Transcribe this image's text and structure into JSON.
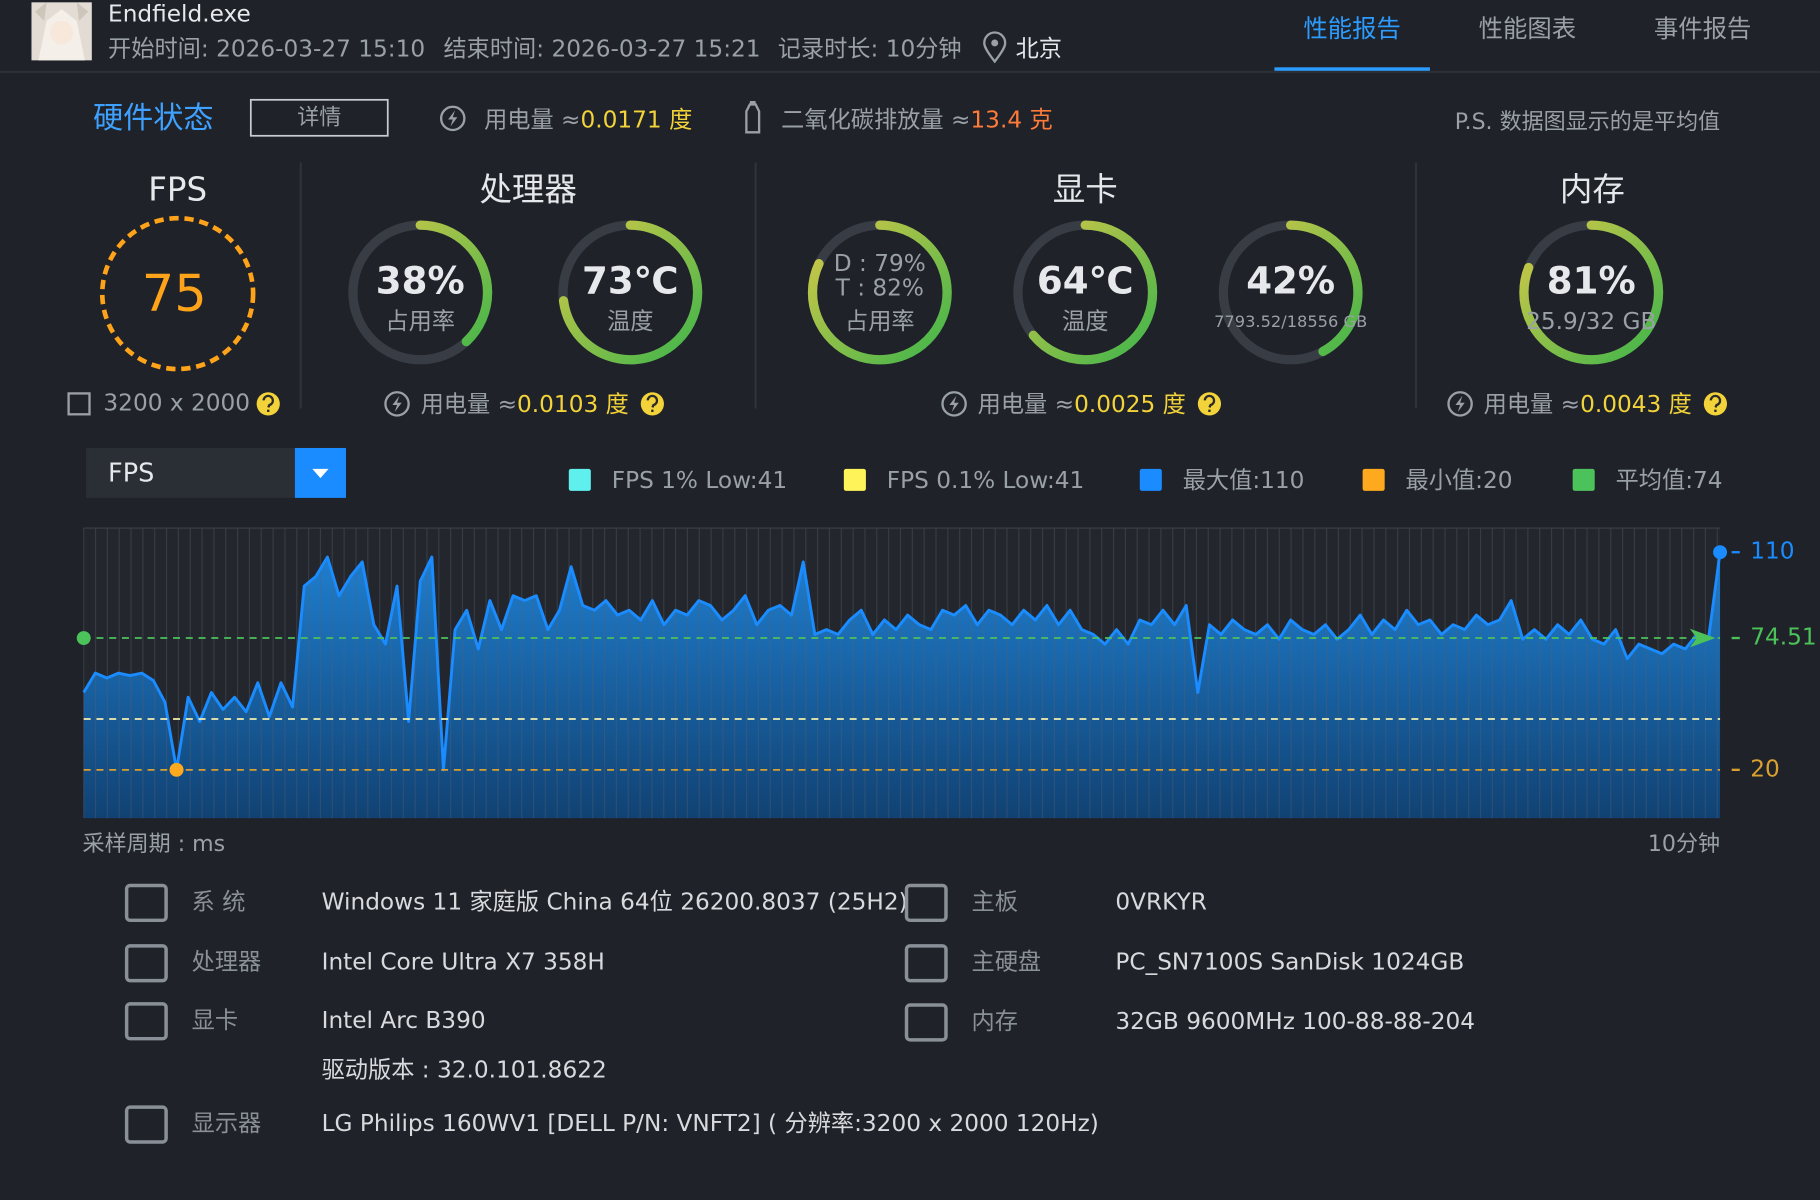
{
  "header": {
    "app_name": "Endfield.exe",
    "start_time": "开始时间: 2026-03-27 15:10",
    "end_time": "结束时间: 2026-03-27 15:21",
    "duration": "记录时长: 10分钟",
    "location": "北京"
  },
  "tabs": [
    "性能报告",
    "性能图表",
    "事件报告"
  ],
  "active_tab": 0,
  "summary": {
    "title": "硬件状态",
    "details_button": "详情",
    "power_label": "用电量 ≈",
    "power_value": "0.0171 度",
    "co2_label": "二氧化碳排放量 ≈",
    "co2_value": "13.4 克",
    "note": "P.S. 数据图显示的是平均值"
  },
  "gauge_range": [
    0,
    100
  ],
  "fps_panel": {
    "title": "FPS",
    "value": "75",
    "resolution": "3200 x 2000"
  },
  "cpu_panel": {
    "title": "处理器",
    "gauges": [
      {
        "value": 38,
        "label": "38%",
        "caption": "占用率"
      },
      {
        "value": 73,
        "label": "73℃",
        "caption": "温度"
      }
    ],
    "power_label": "用电量 ≈",
    "power_value": "0.0103 度"
  },
  "gpu_panel": {
    "title": "显卡",
    "gauges": [
      {
        "value": 82,
        "sub_label": "D : 79%",
        "label": "T : 82%",
        "caption": "占用率"
      },
      {
        "value": 64,
        "label": "64℃",
        "caption": "温度"
      },
      {
        "value": 42,
        "label": "42%",
        "caption": "7793.52/18556 GB"
      }
    ],
    "power_label": "用电量 ≈",
    "power_value": "0.0025 度"
  },
  "memory_panel": {
    "title": "内存",
    "gauges": [
      {
        "value": 81,
        "label": "81%",
        "caption": "25.9/32 GB"
      }
    ],
    "power_label": "用电量 ≈",
    "power_value": "0.0043 度"
  },
  "chart_data": {
    "type": "area",
    "series": [
      {
        "name": "FPS",
        "color": "#1a8cff",
        "values": [
          52,
          60,
          58,
          60,
          59,
          60,
          57,
          48,
          20,
          50,
          40,
          52,
          45,
          50,
          44,
          56,
          42,
          56,
          46,
          96,
          100,
          108,
          92,
          100,
          106,
          80,
          72,
          96,
          40,
          98,
          108,
          20,
          78,
          86,
          70,
          90,
          78,
          92,
          90,
          92,
          78,
          86,
          104,
          88,
          86,
          90,
          84,
          86,
          82,
          90,
          80,
          86,
          84,
          90,
          88,
          82,
          86,
          92,
          80,
          86,
          88,
          84,
          106,
          76,
          78,
          76,
          82,
          86,
          76,
          82,
          78,
          84,
          80,
          78,
          86,
          84,
          88,
          80,
          86,
          84,
          80,
          86,
          82,
          88,
          80,
          86,
          78,
          76,
          72,
          78,
          72,
          82,
          80,
          86,
          80,
          88,
          52,
          80,
          76,
          82,
          78,
          76,
          80,
          74,
          82,
          78,
          76,
          80,
          74,
          78,
          84,
          76,
          82,
          78,
          86,
          80,
          82,
          76,
          80,
          78,
          84,
          80,
          82,
          90,
          74,
          78,
          74,
          80,
          76,
          82,
          74,
          72,
          78,
          66,
          72,
          70,
          68,
          72,
          70,
          76,
          74,
          110
        ]
      }
    ],
    "legend": [
      {
        "name": "FPS 1% Low:41",
        "color": "#5ff0ee"
      },
      {
        "name": "FPS 0.1% Low:41",
        "color": "#fff35a"
      },
      {
        "name": "最大值:110",
        "color": "#1a8cff"
      },
      {
        "name": "最小值:20",
        "color": "#ffaa1e"
      },
      {
        "name": "平均值:74",
        "color": "#4cc25a"
      }
    ],
    "reference_lines": [
      {
        "value": 110,
        "label": "110",
        "color": "#1a8cff",
        "dashed": false
      },
      {
        "value": 74.51,
        "label": "74.51",
        "color": "#4cc25a",
        "dashed": true,
        "marker": "arrow"
      },
      {
        "value": 41,
        "color": "#f3efb0",
        "dashed": true
      },
      {
        "value": 20,
        "label": "20",
        "color": "#d9a030",
        "dashed": true
      }
    ],
    "ylim": [
      0,
      120
    ],
    "x_label": "采样周期 : ms",
    "x_end_label": "10分钟"
  },
  "system_info": {
    "left": [
      {
        "label": "系 统",
        "value": "Windows 11 家庭版 China 64位 26200.8037 (25H2)"
      },
      {
        "label": "处理器",
        "value": "Intel Core Ultra X7 358H"
      },
      {
        "label": "显卡",
        "value": "Intel Arc B390",
        "extra": "驱动版本 : 32.0.101.8622"
      },
      {
        "label": "显示器",
        "value": "LG Philips 160WV1 [DELL P/N: VNFT2] ( 分辨率:3200 x 2000 120Hz)"
      }
    ],
    "right": [
      {
        "label": "主板",
        "value": "0VRKYR"
      },
      {
        "label": "主硬盘",
        "value": "PC_SN7100S SanDisk 1024GB"
      },
      {
        "label": "内存",
        "value": "32GB 9600MHz 100-88-88-204"
      }
    ]
  }
}
